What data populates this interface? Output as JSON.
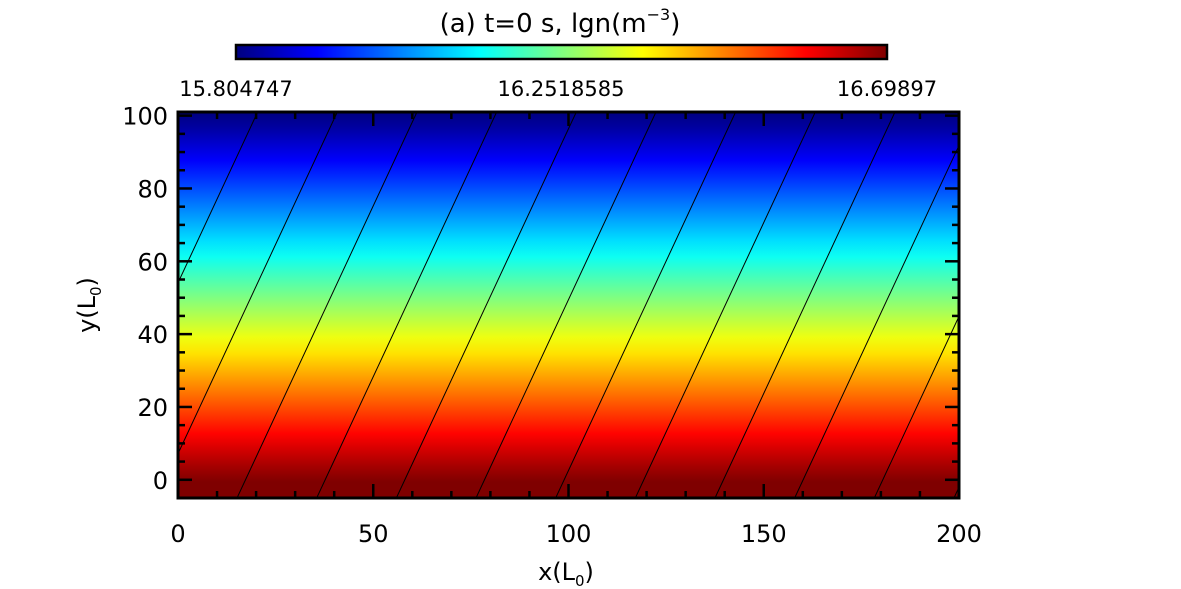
{
  "chart_data": {
    "type": "heatmap",
    "title_prefix": "(a) t=0 s, lgn(m",
    "title_exponent": "−3",
    "title_suffix": ")",
    "xlabel_main": "x(L",
    "xlabel_sub": "0",
    "xlabel_end": ")",
    "ylabel_main": "y(L",
    "ylabel_sub": "0",
    "ylabel_end": ")",
    "xlim": [
      0,
      200
    ],
    "ylim": [
      -5,
      101
    ],
    "x_ticks": [
      0,
      50,
      100,
      150,
      200
    ],
    "x_tick_labels": [
      "0",
      "50",
      "100",
      "150",
      "200"
    ],
    "y_ticks": [
      0,
      20,
      40,
      60,
      80,
      100
    ],
    "y_tick_labels": [
      "0",
      "20",
      "40",
      "60",
      "80",
      "100"
    ],
    "x_minor_step": 10,
    "y_minor_step": 5,
    "colorbar": {
      "min": 15.804747,
      "mid": 16.2518585,
      "max": 16.69897,
      "labels": [
        "15.804747",
        "16.2518585",
        "16.69897"
      ],
      "colormap": "rainbow"
    },
    "field": {
      "description": "density varies linearly with y: high at bottom, low at top",
      "value_at_y_min": 16.69897,
      "value_at_y_max": 15.804747
    },
    "field_lines": {
      "slope_dy_per_dx": 2.3,
      "spacing_x": 20.4,
      "color": "#000000"
    },
    "colors": {
      "stops": [
        "#00007f",
        "#0000ff",
        "#0080ff",
        "#00ffff",
        "#80ff80",
        "#ffff00",
        "#ff8000",
        "#ff0000",
        "#7f0000"
      ]
    }
  }
}
